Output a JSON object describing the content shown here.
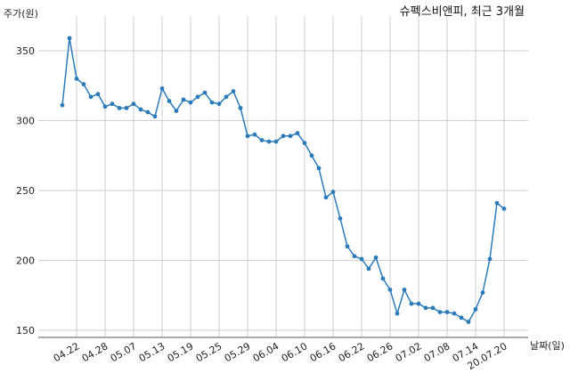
{
  "chart_data": {
    "type": "line",
    "title": "슈펙스비앤피, 최근 3개월",
    "ylabel": "주가(원)",
    "xlabel": "날짜(일)",
    "ylim": [
      145,
      370
    ],
    "yticks": [
      150,
      200,
      250,
      300,
      350
    ],
    "xtick_labels": [
      "04.22",
      "04.28",
      "05.07",
      "05.13",
      "05.19",
      "05.25",
      "05.29",
      "06.04",
      "06.10",
      "06.16",
      "06.22",
      "06.26",
      "07.02",
      "07.08",
      "07.14",
      "20.07.20"
    ],
    "xtick_index": [
      2,
      6,
      10,
      14,
      18,
      22,
      26,
      30,
      34,
      38,
      42,
      46,
      50,
      54,
      58,
      62
    ],
    "grid": true,
    "color": "#2b7bb9",
    "series": [
      {
        "values": [
          311,
          359,
          330,
          326,
          317,
          319,
          310,
          312,
          309,
          309,
          312,
          308,
          306,
          303,
          323,
          314,
          307,
          315,
          313,
          317,
          320,
          313,
          312,
          317,
          321,
          309,
          289,
          290,
          286,
          285,
          285,
          289,
          289,
          291,
          284,
          275,
          266,
          245,
          249,
          230,
          210,
          203,
          201,
          194,
          202,
          187,
          179,
          162,
          179,
          169,
          169,
          166,
          166,
          163,
          163,
          162,
          159,
          156,
          165,
          177,
          201,
          241,
          237
        ]
      }
    ]
  }
}
